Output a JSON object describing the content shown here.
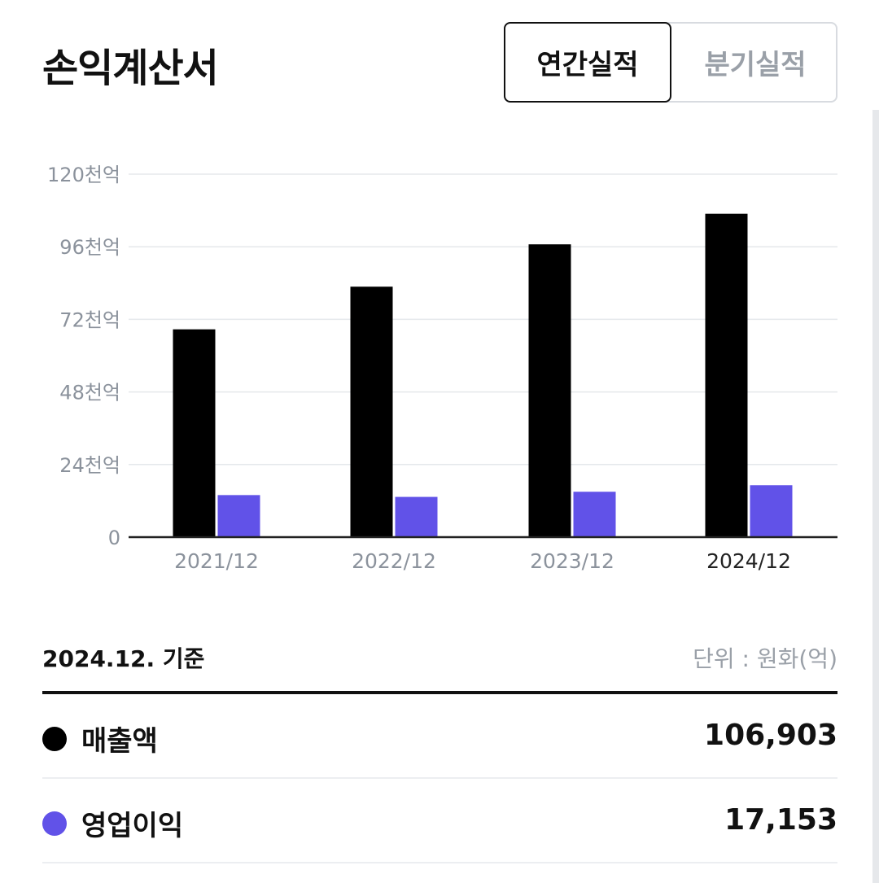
{
  "header": {
    "title": "손익계산서",
    "tabs": [
      {
        "label": "연간실적",
        "active": true
      },
      {
        "label": "분기실적",
        "active": false
      }
    ]
  },
  "colors": {
    "revenue": "#000000",
    "operating_profit": "#6152e8",
    "grid": "#e5e8eb",
    "axis": "#222222"
  },
  "chart_data": {
    "type": "bar",
    "categories": [
      "2021/12",
      "2022/12",
      "2023/12",
      "2024/12"
    ],
    "highlight_category": "2024/12",
    "series": [
      {
        "name": "매출액",
        "color": "#000000",
        "values": [
          68700,
          82800,
          96800,
          106903
        ]
      },
      {
        "name": "영업이익",
        "color": "#6152e8",
        "values": [
          13900,
          13300,
          15000,
          17153
        ]
      }
    ],
    "y_ticks": [
      {
        "value": 0,
        "label": "0"
      },
      {
        "value": 24000,
        "label": "24천억"
      },
      {
        "value": 48000,
        "label": "48천억"
      },
      {
        "value": 72000,
        "label": "72천억"
      },
      {
        "value": 96000,
        "label": "96천억"
      },
      {
        "value": 120000,
        "label": "120천억"
      }
    ],
    "ylim": [
      0,
      120000
    ],
    "grid": true
  },
  "summary": {
    "as_of": "2024.12. 기준",
    "unit": "단위 : 원화(억)",
    "rows": [
      {
        "label": "매출액",
        "value": "106,903",
        "color": "#000000"
      },
      {
        "label": "영업이익",
        "value": "17,153",
        "color": "#6152e8"
      }
    ]
  }
}
